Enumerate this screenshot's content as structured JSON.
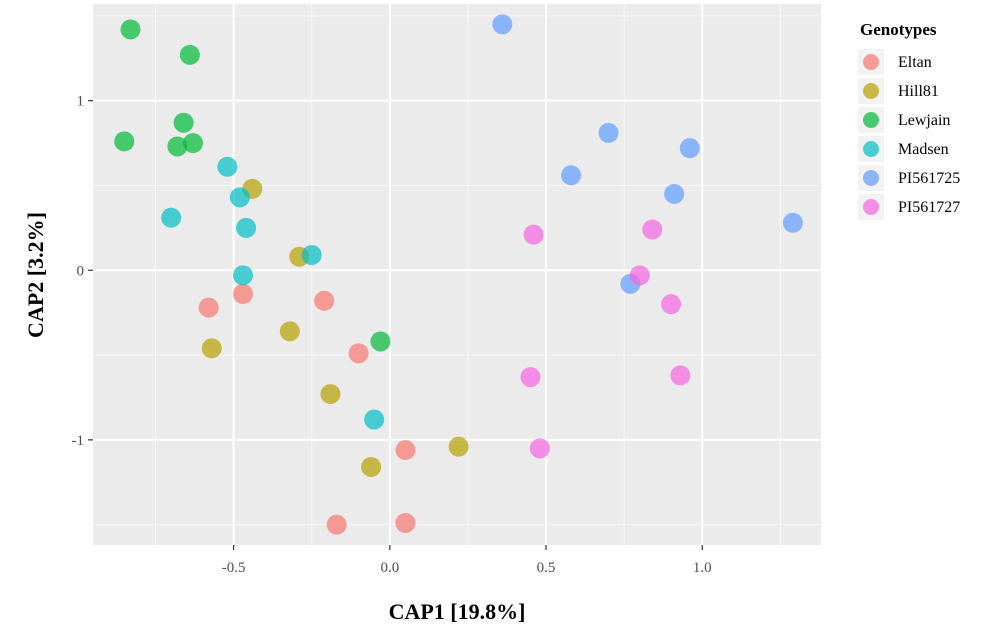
{
  "chart_data": {
    "type": "scatter",
    "xlabel": "CAP1 [19.8%]",
    "ylabel": "CAP2 [3.2%]",
    "xlim": [
      -0.95,
      1.38
    ],
    "ylim": [
      -1.62,
      1.57
    ],
    "x_ticks": [
      -0.5,
      0.0,
      0.5,
      1.0
    ],
    "x_tick_labels": [
      "-0.5",
      "0.0",
      "0.5",
      "1.0"
    ],
    "y_ticks": [
      -1,
      0,
      1
    ],
    "y_tick_labels": [
      "-1",
      "0",
      "1"
    ],
    "grid": true,
    "legend": {
      "title": "Genotypes",
      "position": "right"
    },
    "series": [
      {
        "name": "Eltan",
        "color": "#F8766D",
        "points": [
          [
            -0.58,
            -0.22
          ],
          [
            -0.47,
            -0.14
          ],
          [
            -0.21,
            -0.18
          ],
          [
            -0.1,
            -0.49
          ],
          [
            0.05,
            -1.06
          ],
          [
            -0.17,
            -1.5
          ],
          [
            0.05,
            -1.49
          ]
        ]
      },
      {
        "name": "Hill81",
        "color": "#B79F00",
        "points": [
          [
            -0.44,
            0.48
          ],
          [
            -0.29,
            0.08
          ],
          [
            -0.57,
            -0.46
          ],
          [
            -0.32,
            -0.36
          ],
          [
            -0.19,
            -0.73
          ],
          [
            0.22,
            -1.04
          ],
          [
            -0.06,
            -1.16
          ]
        ]
      },
      {
        "name": "Lewjain",
        "color": "#00BA38",
        "points": [
          [
            -0.83,
            1.42
          ],
          [
            -0.64,
            1.27
          ],
          [
            -0.66,
            0.87
          ],
          [
            -0.85,
            0.76
          ],
          [
            -0.68,
            0.73
          ],
          [
            -0.63,
            0.75
          ],
          [
            -0.03,
            -0.42
          ]
        ]
      },
      {
        "name": "Madsen",
        "color": "#00BFC4",
        "points": [
          [
            -0.52,
            0.61
          ],
          [
            -0.48,
            0.43
          ],
          [
            -0.7,
            0.31
          ],
          [
            -0.46,
            0.25
          ],
          [
            -0.25,
            0.09
          ],
          [
            -0.47,
            -0.03
          ],
          [
            -0.05,
            -0.88
          ]
        ]
      },
      {
        "name": "PI561725",
        "color": "#619CFF",
        "points": [
          [
            0.36,
            1.45
          ],
          [
            0.7,
            0.81
          ],
          [
            0.96,
            0.72
          ],
          [
            0.58,
            0.56
          ],
          [
            0.91,
            0.45
          ],
          [
            1.29,
            0.28
          ],
          [
            0.77,
            -0.08
          ]
        ]
      },
      {
        "name": "PI561727",
        "color": "#F564E3",
        "points": [
          [
            0.46,
            0.21
          ],
          [
            0.84,
            0.24
          ],
          [
            0.8,
            -0.03
          ],
          [
            0.9,
            -0.2
          ],
          [
            0.45,
            -0.63
          ],
          [
            0.93,
            -0.62
          ],
          [
            0.48,
            -1.05
          ]
        ]
      }
    ]
  }
}
